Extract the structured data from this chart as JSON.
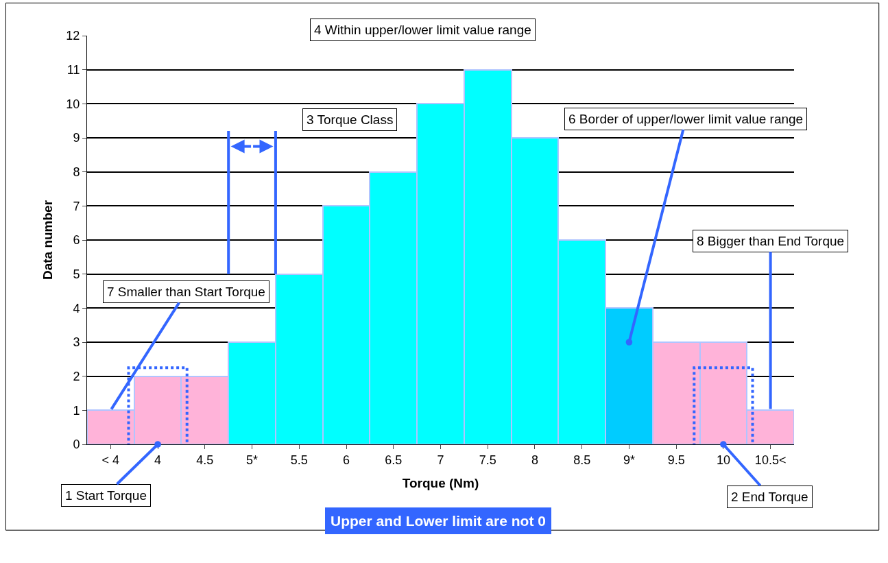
{
  "chart_data": {
    "type": "bar",
    "xlabel": "Torque (Nm)",
    "ylabel": "Data number",
    "categories": [
      "< 4",
      "4",
      "4.5",
      "5*",
      "5.5",
      "6",
      "6.5",
      "7",
      "7.5",
      "8",
      "8.5",
      "9*",
      "9.5",
      "10",
      "10.5<"
    ],
    "values": [
      1,
      2,
      2,
      3,
      5,
      7,
      8,
      10,
      11,
      9,
      6,
      4,
      3,
      3,
      1
    ],
    "colors": [
      "#ffb3d9",
      "#ffb3d9",
      "#ffb3d9",
      "#00ffff",
      "#00ffff",
      "#00ffff",
      "#00ffff",
      "#00ffff",
      "#00ffff",
      "#00ffff",
      "#00ffff",
      "#00ccff",
      "#ffb3d9",
      "#ffb3d9",
      "#ffb3d9"
    ],
    "ylim": [
      0,
      12
    ],
    "yticks": [
      0,
      1,
      2,
      3,
      4,
      5,
      6,
      7,
      8,
      9,
      10,
      11,
      12
    ],
    "grid": "y",
    "annotations": [
      "4 Within upper/lower limit value range",
      "3 Torque Class",
      {
        "text": "6 Border of upper/lower limit value range",
        "x": "9*",
        "y": 3
      },
      {
        "text": "8 Bigger than End Torque",
        "x": "10.5<",
        "y": 1
      },
      {
        "text": "7 Smaller than Start Torque",
        "x": "< 4",
        "y": 1
      },
      {
        "text": "1 Start Torque",
        "x": "4",
        "y": 0
      },
      {
        "text": "2 End Torque",
        "x": "10",
        "y": 0
      },
      "Upper and Lower limit are not 0"
    ]
  }
}
